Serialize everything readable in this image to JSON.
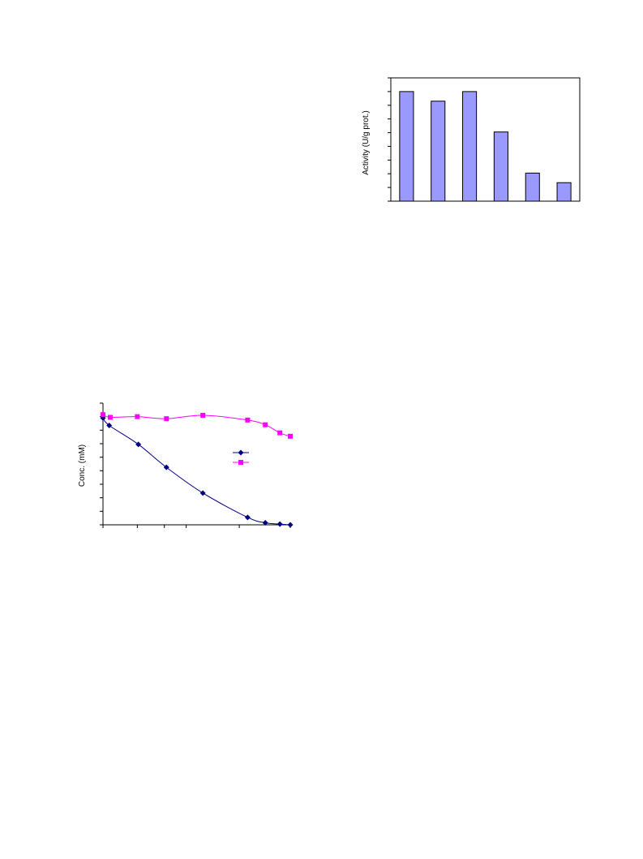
{
  "charts": [
    {
      "type": "bar",
      "ylabel": "Activity (U/g prot.)",
      "xlabel": "",
      "ylim": [
        0,
        9
      ],
      "y_ticks": 9,
      "categories": [
        "",
        "",
        "",
        "",
        "",
        ""
      ],
      "values": [
        8.0,
        7.3,
        8.0,
        5.05,
        2.05,
        1.35
      ],
      "colors": {
        "bar_fill": "#9999ff",
        "bar_stroke": "#000000",
        "axis": "#000000"
      }
    },
    {
      "type": "line",
      "ylabel": "Conc. (mM)",
      "xlabel": "",
      "xlim": [
        0,
        9
      ],
      "ylim": [
        0,
        9
      ],
      "x_ticks": [
        0,
        1.65,
        2.95,
        4.0,
        6.55,
        9.0
      ],
      "y_ticks": 9,
      "series": [
        {
          "name": "",
          "color": "#000080",
          "marker": "diamond",
          "x": [
            0,
            0.3,
            1.7,
            3.05,
            4.8,
            6.95,
            7.8,
            8.5,
            9.0
          ],
          "y": [
            7.9,
            7.35,
            5.95,
            4.25,
            2.35,
            0.55,
            0.15,
            0.05,
            0.0
          ]
        },
        {
          "name": "",
          "color": "#ff00ff",
          "marker": "square",
          "x": [
            0,
            0.35,
            1.65,
            3.05,
            4.8,
            6.95,
            7.8,
            8.5,
            9.0
          ],
          "y": [
            8.15,
            7.95,
            8.0,
            7.85,
            8.1,
            7.75,
            7.4,
            6.8,
            6.55
          ]
        }
      ]
    }
  ]
}
